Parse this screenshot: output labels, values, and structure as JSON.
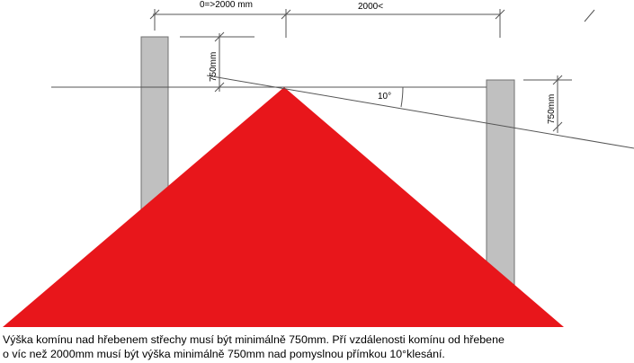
{
  "diagram": {
    "labels": {
      "dim_left_horizontal": "0=>2000 mm",
      "dim_right_horizontal": "2000<",
      "dim_left_vertical": "750mm",
      "dim_right_vertical": "750mm",
      "angle": "10°"
    },
    "colors": {
      "roof": "#e8161b",
      "chimney_fill": "#c0c0c0",
      "chimney_stroke": "#707070",
      "line": "#555555"
    }
  },
  "caption": {
    "line1": "Výška komínu nad hřebenem střechy musí být minimálně 750mm. Pří vzdálenosti komínu od hřebene",
    "line2": "o víc než 2000mm musí být výška minimálně 750mm nad pomyslnou přímkou 10°klesání."
  }
}
